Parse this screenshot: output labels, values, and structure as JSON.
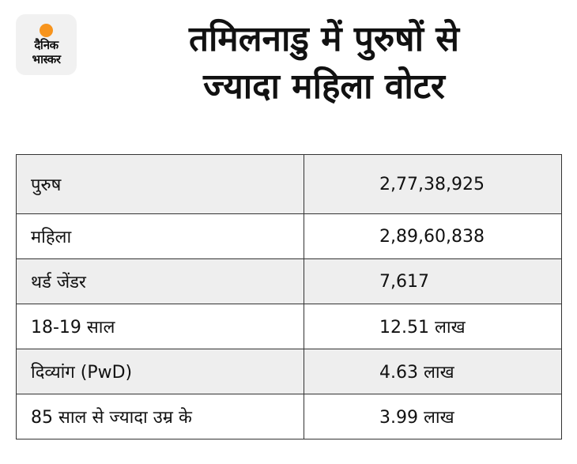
{
  "brand": {
    "line1": "दैनिक",
    "line2": "भास्कर",
    "accent_color": "#f7941d"
  },
  "headline": {
    "line1": "तमिलनाडु में पुरुषों से",
    "line2": "ज्यादा महिला वोटर"
  },
  "table": {
    "rows": [
      {
        "label": "पुरुष",
        "value": "2,77,38,925"
      },
      {
        "label": "महिला",
        "value": "2,89,60,838"
      },
      {
        "label": "थर्ड जेंडर",
        "value": "7,617"
      },
      {
        "label": "18-19 साल",
        "value": "12.51 लाख"
      },
      {
        "label": "दिव्यांग (PwD)",
        "value": "4.63 लाख"
      },
      {
        "label": "85 साल से ज्यादा उम्र के",
        "value": "3.99 लाख"
      }
    ]
  }
}
